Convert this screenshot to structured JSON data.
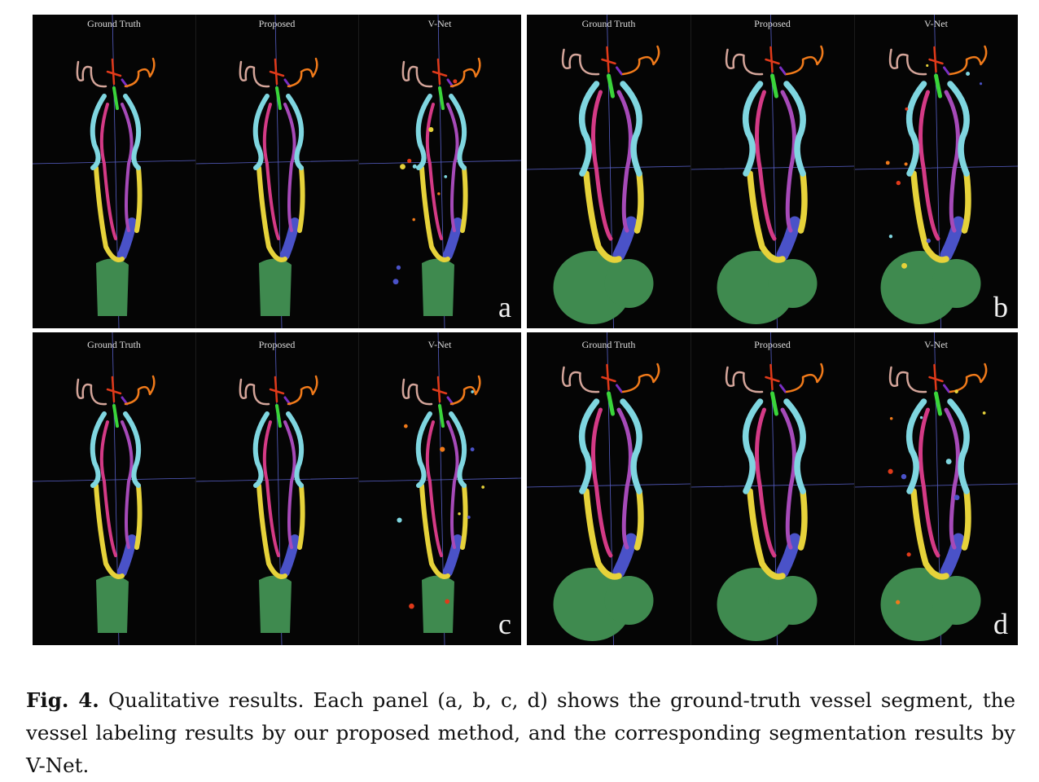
{
  "figure": {
    "panels": [
      {
        "id": "a",
        "letter": "a",
        "views": [
          "Ground Truth",
          "Proposed",
          "V-Net"
        ]
      },
      {
        "id": "b",
        "letter": "b",
        "views": [
          "Ground Truth",
          "Proposed",
          "V-Net"
        ]
      },
      {
        "id": "c",
        "letter": "c",
        "views": [
          "Ground Truth",
          "Proposed",
          "V-Net"
        ]
      },
      {
        "id": "d",
        "letter": "d",
        "views": [
          "Ground Truth",
          "Proposed",
          "V-Net"
        ]
      }
    ],
    "colors": {
      "pink": "#d4a59a",
      "red": "#e03a1a",
      "orange": "#f07a1a",
      "purple": "#7a2fc4",
      "green": "#3ad43a",
      "cyan": "#7fd6e0",
      "magenta": "#d43a86",
      "violet": "#a64ab8",
      "yellow": "#e6d23a",
      "blue": "#4a52c8",
      "aorta": "#3f8a4f",
      "grid": "#5860c8"
    }
  },
  "caption": {
    "label": "Fig. 4.",
    "text": "Qualitative results. Each panel (a, b, c, d) shows the ground-truth vessel segment, the vessel labeling results by our proposed method, and the corresponding segmentation results by V-Net."
  }
}
